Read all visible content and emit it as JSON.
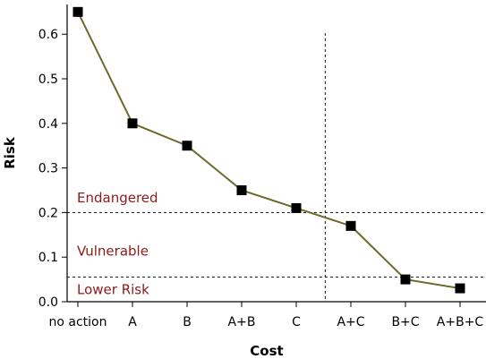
{
  "chart_data": {
    "type": "line",
    "xlabel": "Cost",
    "ylabel": "Risk",
    "categories": [
      "no action",
      "A",
      "B",
      "A+B",
      "C",
      "A+C",
      "B+C",
      "A+B+C"
    ],
    "values": [
      0.65,
      0.4,
      0.35,
      0.25,
      0.21,
      0.17,
      0.05,
      0.03
    ],
    "ylim": [
      0,
      0.6667
    ],
    "yticks": [
      "0.0",
      "0.1",
      "0.2",
      "0.3",
      "0.4",
      "0.5",
      "0.6"
    ],
    "grid": false,
    "reference_lines": {
      "horizontal": [
        0.2,
        0.055
      ],
      "vertical_between": [
        "C",
        "A+C"
      ],
      "vertical_fraction": 0.53
    },
    "zones": [
      {
        "label": "Endangered",
        "y": 0.233
      },
      {
        "label": "Vulnerable",
        "y": 0.113
      },
      {
        "label": "Lower Risk",
        "y": 0.027
      }
    ],
    "colors": {
      "line": "#6b6a2a",
      "marker": "#000000",
      "zone_text": "#8b1a1a",
      "axis": "#000000"
    }
  }
}
